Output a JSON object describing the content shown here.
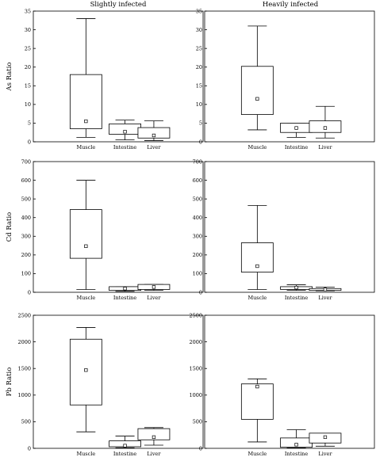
{
  "column_titles": [
    "Slightly infected",
    "Heavily infected"
  ],
  "chart_data": [
    {
      "type": "box",
      "column": "Slightly infected",
      "ylabel": "As Ratio",
      "ylim": [
        0,
        35
      ],
      "yticks": [
        0,
        5,
        10,
        15,
        20,
        25,
        30,
        35
      ],
      "categories": [
        "Muscle",
        "Intestine",
        "Liver"
      ],
      "boxes": [
        {
          "category": "Muscle",
          "min": 1.2,
          "q1": 3.5,
          "q3": 18.0,
          "max": 33.0,
          "mean": 5.5
        },
        {
          "category": "Intestine",
          "min": 0.5,
          "q1": 2.0,
          "q3": 4.8,
          "max": 5.8,
          "mean": 2.7
        },
        {
          "category": "Liver",
          "min": 0.3,
          "q1": 1.0,
          "q3": 3.8,
          "max": 5.6,
          "mean": 1.7
        }
      ]
    },
    {
      "type": "box",
      "column": "Heavily infected",
      "ylabel": "",
      "ylim": [
        0,
        35
      ],
      "yticks": [
        0,
        5,
        10,
        15,
        20,
        25,
        30,
        35
      ],
      "categories": [
        "Muscle",
        "Intestine",
        "Liver"
      ],
      "boxes": [
        {
          "category": "Muscle",
          "min": 3.2,
          "q1": 7.3,
          "q3": 20.2,
          "max": 31.0,
          "mean": 11.5
        },
        {
          "category": "Intestine",
          "min": 1.2,
          "q1": 2.5,
          "q3": 5.0,
          "max": 5.0,
          "mean": 3.7
        },
        {
          "category": "Liver",
          "min": 1.0,
          "q1": 2.5,
          "q3": 5.6,
          "max": 9.5,
          "mean": 3.7
        }
      ]
    },
    {
      "type": "box",
      "column": "Slightly infected",
      "ylabel": "Cd Ratio",
      "ylim": [
        0,
        700
      ],
      "yticks": [
        0,
        100,
        200,
        300,
        400,
        500,
        600,
        700
      ],
      "categories": [
        "Muscle",
        "Intestine",
        "Liver"
      ],
      "boxes": [
        {
          "category": "Muscle",
          "min": 15,
          "q1": 182,
          "q3": 443,
          "max": 600,
          "mean": 247
        },
        {
          "category": "Intestine",
          "min": 5,
          "q1": 10,
          "q3": 30,
          "max": 30,
          "mean": 20
        },
        {
          "category": "Liver",
          "min": 10,
          "q1": 15,
          "q3": 42,
          "max": 42,
          "mean": 28
        }
      ]
    },
    {
      "type": "box",
      "column": "Heavily infected",
      "ylabel": "",
      "ylim": [
        0,
        700
      ],
      "yticks": [
        0,
        100,
        200,
        300,
        400,
        500,
        600,
        700
      ],
      "categories": [
        "Muscle",
        "Intestine",
        "Liver"
      ],
      "boxes": [
        {
          "category": "Muscle",
          "min": 15,
          "q1": 108,
          "q3": 265,
          "max": 465,
          "mean": 140
        },
        {
          "category": "Intestine",
          "min": 10,
          "q1": 15,
          "q3": 30,
          "max": 40,
          "mean": 25
        },
        {
          "category": "Liver",
          "min": 8,
          "q1": 10,
          "q3": 20,
          "max": 28,
          "mean": 15
        }
      ]
    },
    {
      "type": "box",
      "column": "Slightly infected",
      "ylabel": "Pb Ratio",
      "ylim": [
        0,
        2500
      ],
      "yticks": [
        0,
        500,
        1000,
        1500,
        2000,
        2500
      ],
      "categories": [
        "Muscle",
        "Intestine",
        "Liver"
      ],
      "boxes": [
        {
          "category": "Muscle",
          "min": 310,
          "q1": 815,
          "q3": 2050,
          "max": 2270,
          "mean": 1470
        },
        {
          "category": "Intestine",
          "min": 10,
          "q1": 30,
          "q3": 140,
          "max": 230,
          "mean": 50
        },
        {
          "category": "Liver",
          "min": 60,
          "q1": 160,
          "q3": 370,
          "max": 390,
          "mean": 210
        }
      ]
    },
    {
      "type": "box",
      "column": "Heavily infected",
      "ylabel": "",
      "ylim": [
        0,
        2500
      ],
      "yticks": [
        0,
        500,
        1000,
        1500,
        2000,
        2500
      ],
      "categories": [
        "Muscle",
        "Intestine",
        "Liver"
      ],
      "boxes": [
        {
          "category": "Muscle",
          "min": 120,
          "q1": 545,
          "q3": 1210,
          "max": 1305,
          "mean": 1160
        },
        {
          "category": "Intestine",
          "min": 10,
          "q1": 20,
          "q3": 195,
          "max": 350,
          "mean": 70
        },
        {
          "category": "Liver",
          "min": 40,
          "q1": 100,
          "q3": 285,
          "max": 285,
          "mean": 210
        }
      ]
    }
  ]
}
